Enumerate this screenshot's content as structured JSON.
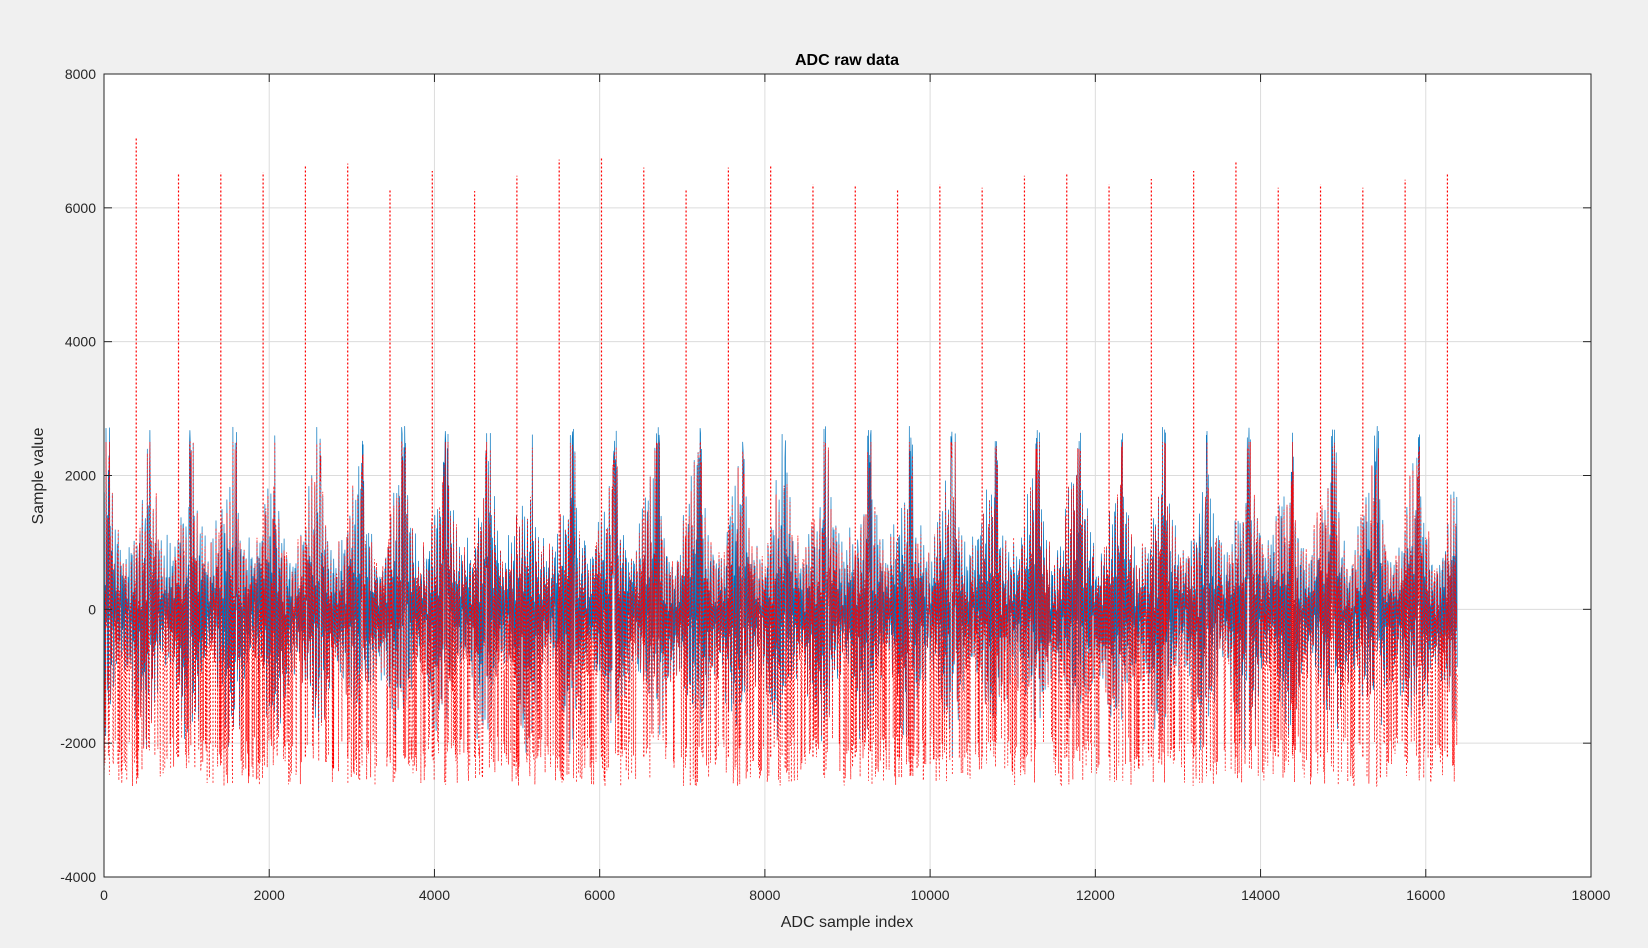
{
  "chart_data": {
    "type": "line",
    "title": "ADC raw data",
    "xlabel": "ADC sample index",
    "ylabel": "Sample value",
    "xlim": [
      0,
      18000
    ],
    "ylim": [
      -4000,
      8000
    ],
    "xticks": [
      "0",
      "2000",
      "4000",
      "6000",
      "8000",
      "10000",
      "12000",
      "14000",
      "16000",
      "18000"
    ],
    "yticks": [
      "-4000",
      "-2000",
      "0",
      "2000",
      "4000",
      "6000",
      "8000"
    ],
    "grid": true,
    "legend": "none",
    "sample_count": 16384,
    "series": [
      {
        "color": "#0072BD",
        "line_style": "solid",
        "approx_range": [
          -2500,
          2800
        ],
        "burst_period_samples": 512
      },
      {
        "color": "#FF0000",
        "line_style": "dotted",
        "approx_range": [
          -2700,
          7050
        ],
        "spike_x": [
          390,
          902,
          1414,
          1926,
          2438,
          2950,
          3462,
          3974,
          4486,
          4998,
          5510,
          6022,
          6534,
          7046,
          7558,
          8070,
          8582,
          9094,
          9606,
          10118,
          10630,
          11142,
          11654,
          12166,
          12678,
          13190,
          13702,
          14214,
          14726,
          15238,
          15750,
          16262
        ],
        "spike_y": [
          7050,
          6520,
          6530,
          6530,
          6620,
          6660,
          6280,
          6550,
          6250,
          6480,
          6720,
          6750,
          6600,
          6280,
          6600,
          6620,
          6350,
          6320,
          6270,
          6350,
          6300,
          6480,
          6500,
          6350,
          6430,
          6550,
          6700,
          6300,
          6350,
          6300,
          6420,
          6500
        ]
      }
    ]
  }
}
